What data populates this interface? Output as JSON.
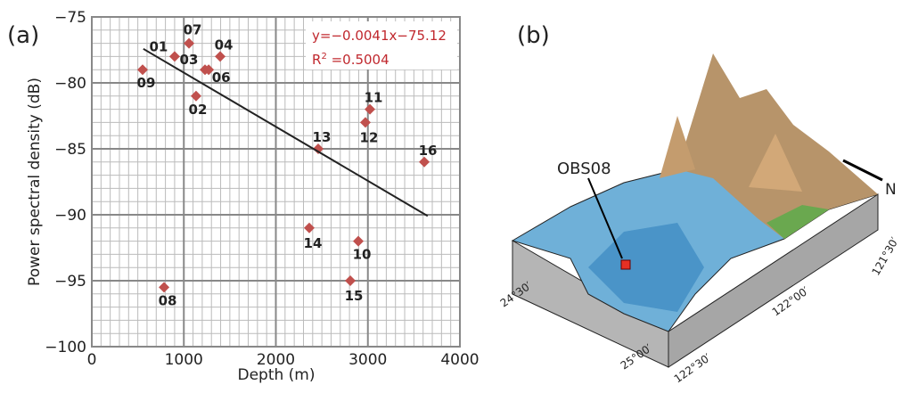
{
  "chart_data": {
    "type": "scatter",
    "xlabel": "Depth (m)",
    "ylabel": "Power spectral density (dB)",
    "xlim": [
      0,
      4000
    ],
    "xticks": [
      0,
      1000,
      2000,
      3000,
      4000
    ],
    "ylim": [
      -100,
      -75
    ],
    "yticks": [
      {
        "value": -100,
        "label": "−100"
      },
      {
        "value": -95,
        "label": "−95"
      },
      {
        "value": -90,
        "label": "−90"
      },
      {
        "value": -85,
        "label": "−85"
      },
      {
        "value": -80,
        "label": "−80"
      },
      {
        "value": -75,
        "label": "−75"
      }
    ],
    "grid": true,
    "series": [
      {
        "color": "#c0504d",
        "labels": [
          "01",
          "02",
          "03",
          "04",
          "06",
          "07",
          "08",
          "09",
          "10",
          "11",
          "12",
          "13",
          "14",
          "15",
          "16"
        ],
        "x": [
          900,
          1133,
          1230,
          1395,
          1270,
          1056,
          785,
          552,
          2896,
          3022,
          2973,
          2460,
          2363,
          2809,
          3613
        ],
        "values": [
          -78,
          -81,
          -79,
          -78,
          -79,
          -77,
          -95.5,
          -79,
          -92,
          -82,
          -83,
          -85,
          -91,
          -95,
          -86
        ]
      },
      {
        "type": "line",
        "color": "#222222",
        "x": [
          560,
          3650
        ],
        "values": [
          -77.42,
          -90.09
        ]
      }
    ],
    "annotations": {
      "equation": "y=−0.0041x−75.12",
      "r2_base": "R",
      "r2_sup": "2",
      "r2_text": " =0.5004",
      "color": "#c0282e"
    }
  },
  "panel_labels": [
    "(a)",
    "(b)"
  ],
  "terrain": {
    "station": "OBS08",
    "north": "N",
    "lat_ticks": [
      "24°30′",
      "25°00′"
    ],
    "lon_ticks": [
      "122°30′",
      "122°00′",
      "121°30′"
    ]
  }
}
